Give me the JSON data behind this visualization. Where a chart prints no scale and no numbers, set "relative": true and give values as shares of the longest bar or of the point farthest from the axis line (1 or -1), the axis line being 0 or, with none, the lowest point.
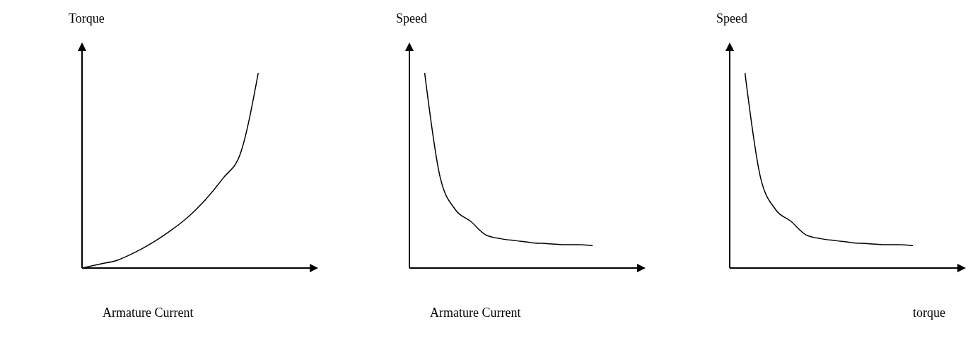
{
  "chart_data": [
    {
      "type": "line",
      "ylabel": "Torque",
      "xlabel": "Armature Current",
      "relative": true,
      "categories": [
        null,
        null,
        null,
        null,
        null,
        null,
        null,
        null,
        null,
        null,
        null,
        null,
        null,
        null
      ],
      "series": [
        {
          "color": "#000000",
          "values": [
            0,
            0.02,
            0.04,
            0.08,
            0.13,
            0.19,
            0.26,
            0.35,
            0.46,
            0.59,
            1,
            null,
            null,
            null
          ]
        }
      ]
    },
    {
      "type": "line",
      "ylabel": "Speed",
      "xlabel": "Armature Current",
      "relative": true,
      "categories": [
        null,
        null,
        null,
        null,
        null,
        null,
        null,
        null,
        null,
        null,
        null,
        null,
        null,
        null,
        null,
        null
      ],
      "series": [
        {
          "color": "#000000",
          "values": [
            null,
            1,
            0.47,
            0.3,
            0.24,
            0.17,
            0.15,
            0.14,
            0.13,
            0.125,
            0.12,
            0.12,
            0.115,
            null,
            null,
            null
          ]
        }
      ]
    },
    {
      "type": "line",
      "ylabel": "Speed",
      "xlabel": "torque",
      "relative": true,
      "categories": [
        null,
        null,
        null,
        null,
        null,
        null,
        null,
        null,
        null,
        null,
        null,
        null,
        null,
        null,
        null,
        null
      ],
      "series": [
        {
          "color": "#000000",
          "values": [
            null,
            1,
            0.47,
            0.3,
            0.24,
            0.17,
            0.15,
            0.14,
            0.13,
            0.125,
            0.12,
            0.12,
            0.115,
            null,
            null,
            null
          ]
        }
      ]
    }
  ]
}
